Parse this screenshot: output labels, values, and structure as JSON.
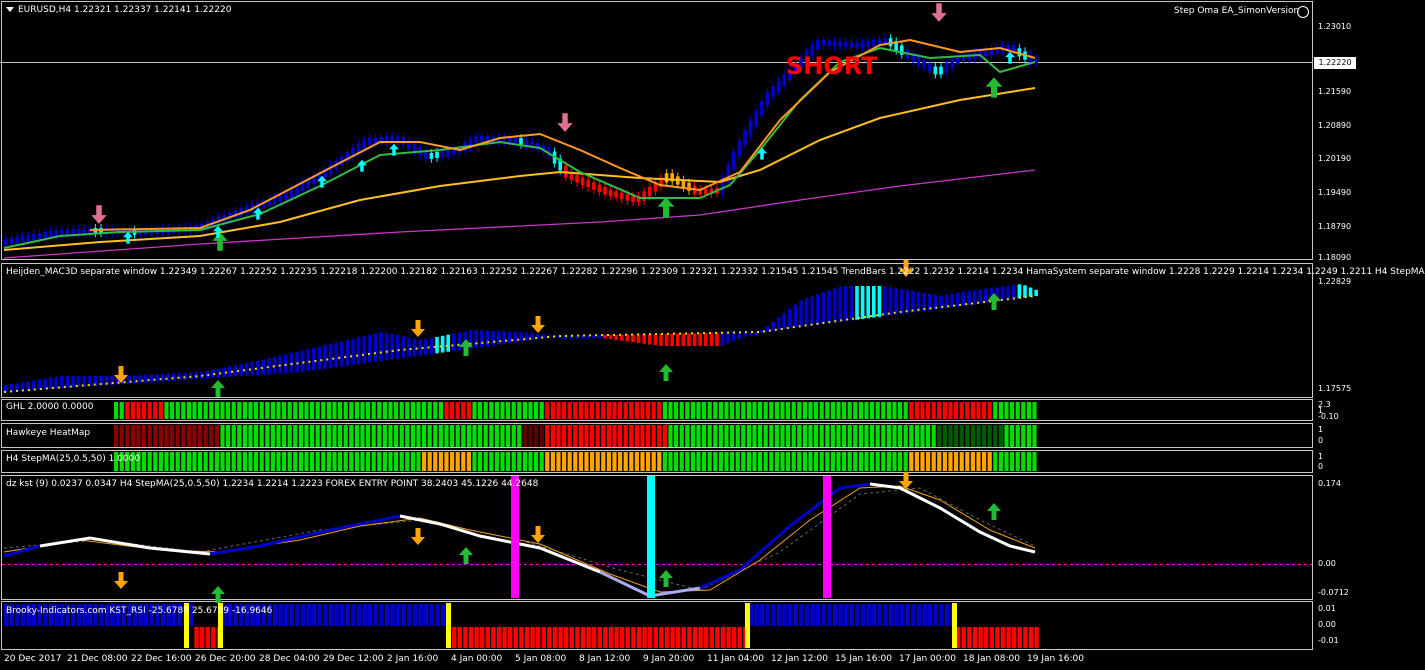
{
  "main": {
    "symbol_label": "EURUSD,H4  1.22321 1.22337 1.22141 1.22220",
    "ea_label": "Step Oma EA_SimonVersion",
    "signal_text": "SHORT",
    "current_price": "1.22220",
    "price_axis": [
      "1.23010",
      "1.21590",
      "1.20890",
      "1.20190",
      "1.19490",
      "1.18790",
      "1.18090"
    ]
  },
  "sub1": {
    "label": "Heijden_MAC3D separate window 1.22349 1.22267 1.22252 1.22235 1.22218 1.22200 1.22182 1.22163 1.22252 1.22267 1.22282 1.22296 1.22309 1.22321 1.22332 1.21545 1.21545  TrendBars 1.2222 1.2232 1.2214 1.2234  HamaSystem separate window 1.2228 1.2229 1.2214 1.2234 1.2249 1.2211  H4 StepMA",
    "axis": [
      "1.22829",
      "1.17575"
    ]
  },
  "ghl": {
    "label": "GHL 2.0000 0.0000",
    "axis": [
      "2.3",
      "1",
      "-0.10"
    ]
  },
  "hawkeye": {
    "label": "Hawkeye HeatMap",
    "axis": [
      "1",
      "0"
    ]
  },
  "stepma": {
    "label": "H4 StepMA(25,0.5,50) 1.0000",
    "axis": [
      "1",
      "0"
    ]
  },
  "kst": {
    "label": "dz kst (9) 0.0237 0.0347  H4 StepMA(25,0.5,50) 1.2234 1.2214 1.2223  FOREX ENTRY POINT 38.2403 45.1226 44.2648",
    "axis": [
      "0.174",
      "0.00",
      "-0.0712"
    ]
  },
  "brooky": {
    "label": "Brooky-Indicators.com KST_RSI -25.6789 25.6789 -16.9646",
    "axis": [
      "0.01",
      "0.00",
      "-0.01"
    ]
  },
  "dates": [
    "20 Dec 2017",
    "21 Dec 08:00",
    "22 Dec 16:00",
    "26 Dec 20:00",
    "28 Dec 04:00",
    "29 Dec 12:00",
    "2 Jan 16:00",
    "4 Jan 00:00",
    "5 Jan 08:00",
    "8 Jan 12:00",
    "9 Jan 20:00",
    "11 Jan 04:00",
    "12 Jan 12:00",
    "15 Jan 16:00",
    "17 Jan 00:00",
    "18 Jan 08:00",
    "19 Jan 16:00"
  ],
  "colors": {
    "bull": "#0000cc",
    "bear": "#ff0000",
    "aqua": "#00ffff",
    "orange": "#ffa500",
    "green": "#00dd00",
    "magenta": "#ff00ff"
  }
}
